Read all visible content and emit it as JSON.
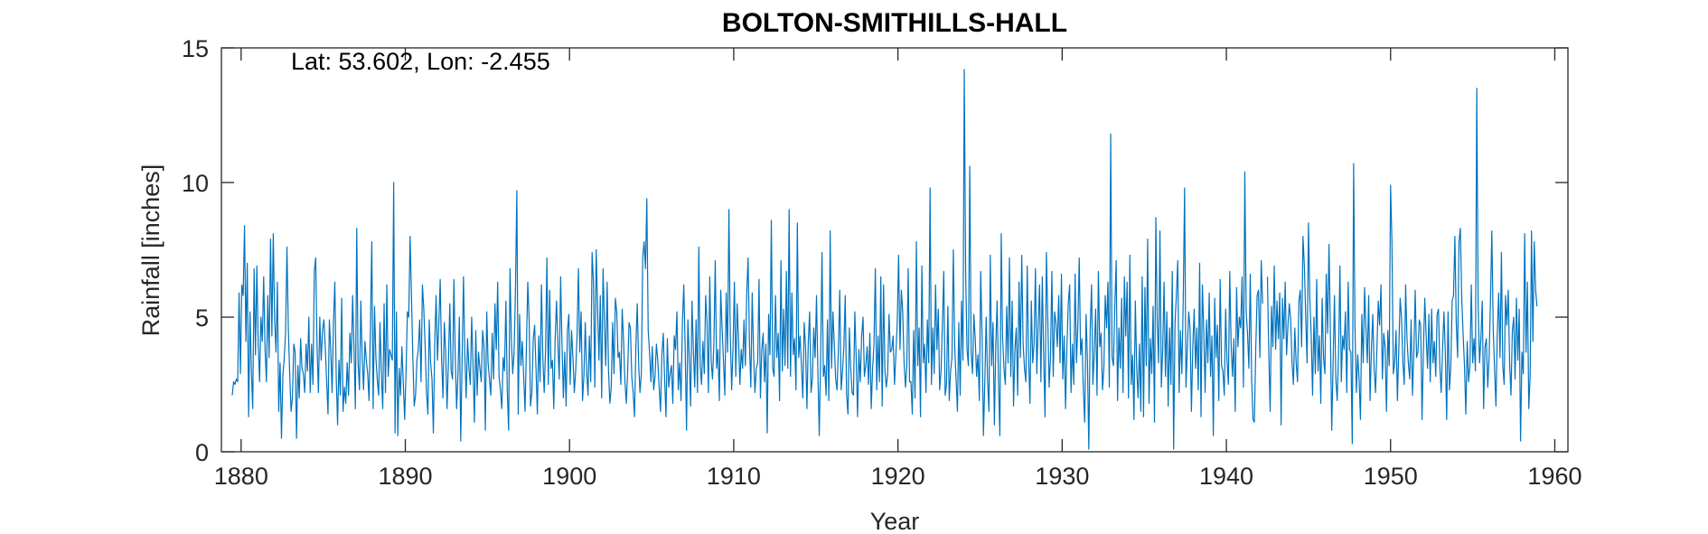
{
  "chart_data": {
    "type": "line",
    "title": "BOLTON-SMITHILLS-HALL",
    "annotation": "Lat: 53.602, Lon: -2.455",
    "xlabel": "Year",
    "ylabel": "Rainfall [inches]",
    "xlim": [
      1878.8,
      1960.8
    ],
    "ylim": [
      0,
      15
    ],
    "xticks": [
      1880,
      1890,
      1900,
      1910,
      1920,
      1930,
      1940,
      1950,
      1960
    ],
    "yticks": [
      0,
      5,
      10,
      15
    ],
    "grid": false,
    "series": [
      {
        "color": "#0072BD",
        "segments": [
          {
            "x_start": 1879.4583,
            "x_step": 0.08333,
            "values": [
              2.1,
              2.6,
              2.5,
              2.7,
              2.6,
              5.9,
              2.9,
              6.2,
              5.8,
              8.4,
              4.1,
              7.0,
              1.3,
              5.2,
              3.0,
              1.6,
              6.8,
              3.6,
              6.9,
              4.0,
              2.6,
              5.0,
              4.1,
              6.5,
              3.8,
              2.6,
              5.8,
              3.5,
              7.9,
              4.3,
              8.1,
              4.9,
              3.7,
              6.3,
              1.5,
              3.3,
              0.5,
              2.8,
              3.5,
              4.4,
              7.6,
              4.6,
              2.9,
              1.5,
              2.0,
              4.0,
              3.7,
              0.5,
              3.2,
              2.0,
              4.2,
              3.1,
              2.9,
              2.2,
              4.0,
              3.0,
              5.0,
              2.2,
              4.0,
              2.5,
              6.7,
              7.2,
              3.9,
              2.2,
              5.0,
              3.4,
              4.5,
              4.9,
              3.9,
              2.6,
              1.4,
              4.9,
              3.8,
              2.2,
              4.8,
              6.3,
              2.8,
              1.0,
              3.4,
              2.1,
              5.7,
              1.5,
              2.4,
              1.8,
              3.3,
              2.1,
              4.4,
              3.3,
              5.8,
              3.9,
              1.6,
              8.3,
              3.3,
              2.3,
              5.6,
              3.5,
              2.3,
              4.1,
              3.4,
              2.9,
              1.9,
              4.6,
              7.8,
              1.6,
              5.4,
              3.5,
              2.7,
              2.1,
              4.8,
              2.9,
              1.6,
              5.5,
              2.2,
              6.2,
              2.8,
              3.8,
              3.6,
              3.4,
              10.0,
              0.7,
              5.2,
              0.6,
              3.1,
              2.1,
              3.9,
              2.6,
              1.2,
              2.9,
              5.2,
              5.0,
              8.0,
              5.8,
              3.5,
              1.7,
              2.1,
              3.4,
              3.8,
              4.9,
              2.6,
              6.2,
              5.3,
              3.9,
              2.2,
              1.4,
              4.9,
              3.3,
              2.7,
              0.7,
              4.0,
              5.8,
              3.4,
              4.8,
              6.4,
              3.5,
              2.0,
              4.8,
              3.7,
              1.6,
              3.3,
              5.5,
              3.0,
              2.7,
              6.4,
              3.5,
              1.6,
              2.9,
              5.0,
              0.4,
              3.4,
              6.5,
              3.6,
              2.0,
              4.2,
              3.1,
              2.5,
              5.0,
              3.2,
              1.1,
              4.5,
              2.1,
              3.7,
              3.1,
              2.6,
              4.5,
              3.9,
              0.8,
              5.2,
              3.3,
              2.7,
              2.1,
              4.4,
              2.7,
              5.5,
              3.8,
              6.3,
              2.8,
              2.3,
              1.6,
              3.5,
              3.0,
              5.6,
              2.3,
              0.8,
              6.8,
              4.2,
              2.9,
              3.7,
              6.0,
              9.7,
              1.4,
              5.1,
              3.2,
              4.1,
              2.8,
              1.5,
              3.9,
              6.3,
              4.9,
              1.7,
              2.2,
              4.2,
              4.7,
              3.1,
              1.4,
              4.3,
              2.6,
              6.2,
              3.5,
              2.2,
              3.8,
              7.2,
              2.5,
              6.0,
              3.1,
              3.4,
              1.6,
              4.2,
              5.6,
              4.0,
              2.7,
              6.5,
              4.0,
              2.0,
              3.7,
              1.7,
              4.5,
              5.1,
              2.5,
              4.5,
              3.5,
              2.2,
              3.0,
              4.3,
              6.8,
              3.7,
              5.2,
              1.9,
              2.8,
              4.8,
              3.0,
              2.1,
              4.3,
              2.6,
              7.4,
              6.3,
              2.4,
              7.5,
              5.4,
              3.4,
              5.8,
              2.0,
              6.8,
              4.9,
              3.2,
              6.3,
              3.0,
              1.8,
              2.4,
              4.8,
              2.9,
              5.7,
              5.2,
              3.5,
              3.7,
              2.5,
              5.3,
              4.1,
              2.6,
              1.8,
              3.0,
              4.8,
              4.6,
              2.8,
              2.2,
              1.3,
              3.9,
              5.5,
              3.3,
              2.2,
              2.9,
              7.2,
              7.8,
              6.8,
              9.4,
              4.5,
              3.7,
              2.6,
              3.9,
              2.3,
              2.8,
              4.0,
              3.4,
              2.4,
              1.5,
              3.6,
              4.4,
              2.7,
              1.3,
              4.2,
              2.4,
              2.9,
              3.2,
              1.8,
              4.3,
              3.8,
              5.2,
              2.3,
              3.3,
              1.9,
              4.8,
              6.2,
              3.9,
              0.8,
              4.9,
              3.5,
              1.7,
              5.6,
              3.8,
              2.4,
              4.9,
              2.2,
              7.6,
              3.2,
              2.5,
              4.1,
              2.9,
              5.8,
              4.8,
              2.2,
              6.5,
              3.4,
              2.7,
              4.0,
              7.1,
              3.1,
              3.8,
              1.9,
              6.0,
              4.6,
              3.4,
              2.1,
              5.9,
              3.7,
              9.0,
              4.3,
              2.3,
              3.9,
              6.3,
              2.8,
              5.5,
              4.2,
              2.5,
              3.8,
              3.1,
              4.9,
              3.2,
              5.9,
              7.2,
              4.0,
              2.4,
              5.9,
              3.6,
              2.2,
              3.1,
              3.3,
              6.4,
              2.0,
              3.8,
              4.4,
              2.6,
              4.0,
              0.7,
              5.1,
              3.6,
              8.6,
              3.1,
              2.8,
              5.8,
              3.5,
              4.4,
              1.9,
              7.1,
              3.0,
              5.3,
              3.2,
              6.7,
              3.1,
              9.0,
              2.8,
              5.9,
              3.6,
              4.2,
              2.3,
              8.5,
              3.5,
              4.3,
              3.2,
              2.0,
              4.8,
              3.9,
              1.6,
              4.1,
              5.2,
              2.2,
              2.7,
              4.6,
              3.5,
              5.8,
              3.0,
              0.6,
              3.4,
              7.4,
              2.8,
              3.2,
              2.1,
              4.9,
              1.9,
              8.2,
              3.1,
              5.2,
              4.0,
              2.7,
              2.3,
              3.8,
              6.0,
              2.3,
              3.0,
              3.9,
              5.8,
              2.1,
              1.4,
              4.6,
              3.1,
              2.2,
              2.1,
              5.2,
              3.5,
              1.3,
              3.8,
              2.6,
              4.3,
              5.0,
              2.8,
              3.2,
              3.9,
              2.5,
              4.4,
              1.6,
              3.1,
              4.0,
              6.8,
              2.3,
              4.3,
              2.6,
              6.5,
              1.7,
              6.2,
              3.0,
              2.4,
              2.9,
              5.1,
              3.7,
              3.8,
              4.3,
              2.5,
              3.6,
              4.8,
              7.3,
              3.8,
              6.0,
              5.2,
              3.3,
              2.4,
              3.2,
              6.8,
              2.6,
              2.6,
              1.4,
              4.5,
              2.0,
              7.8,
              3.2,
              4.6,
              1.3,
              6.9,
              3.3,
              4.0,
              2.2,
              4.9,
              3.3,
              9.8,
              2.5,
              4.6,
              2.9,
              6.2,
              3.8,
              5.3,
              2.3,
              3.0,
              4.7,
              6.7,
              2.1,
              2.5,
              5.4,
              1.9,
              3.0,
              3.5,
              7.5,
              3.9,
              2.7,
              1.5,
              4.8,
              2.1,
              5.6,
              3.4,
              14.2,
              6.6,
              3.8,
              3.2,
              10.6,
              3.7,
              2.9,
              5.1,
              4.2,
              2.8,
              3.6,
              1.9,
              6.7,
              4.3,
              0.6,
              2.6,
              5.0,
              2.7,
              1.5,
              7.3,
              3.2,
              4.8,
              1.0,
              3.9,
              5.6,
              2.6,
              0.6,
              8.1,
              4.2,
              3.1,
              2.5,
              5.4,
              3.3,
              7.2,
              2.8,
              5.6,
              1.7,
              3.8,
              4.6,
              2.1,
              6.3,
              3.5,
              7.3,
              4.0,
              3.1,
              2.6,
              6.9,
              3.5,
              1.8,
              5.6,
              3.3,
              4.0,
              6.8,
              2.9,
              4.7,
              6.2,
              2.6,
              6.5,
              3.6,
              1.3,
              7.4,
              5.0,
              2.4,
              3.5,
              6.7,
              2.8,
              5.2,
              4.8,
              3.9,
              5.8,
              3.3,
              6.6,
              2.7,
              4.3,
              1.6,
              3.9,
              5.5,
              6.2,
              2.2,
              4.0,
              2.5,
              6.6,
              3.3,
              4.7,
              7.2,
              3.6,
              4.2,
              2.3,
              1.1,
              5.1,
              3.4,
              0.1,
              4.5,
              6.2,
              2.5,
              3.7,
              5.3,
              2.1,
              6.7,
              3.9,
              4.4,
              2.3,
              3.1,
              5.8,
              4.6,
              6.3,
              2.4,
              11.8,
              3.5,
              3.2,
              5.4,
              7.1,
              1.9,
              4.6,
              3.1,
              5.7,
              2.2,
              6.5,
              4.3,
              6.3,
              2.0,
              7.3,
              2.5,
              3.6,
              1.2,
              5.6,
              3.1,
              2.0,
              4.0,
              1.5,
              6.5,
              1.3,
              6.1,
              3.2,
              7.9,
              1.8,
              4.2,
              2.9,
              5.4,
              1.1,
              8.7,
              4.8,
              3.3,
              8.2,
              2.4,
              3.8,
              6.3,
              2.8,
              5.2,
              1.7,
              4.6,
              2.5,
              6.7,
              0.1,
              4.8,
              5.8,
              7.1,
              2.2,
              4.5,
              2.9,
              5.6,
              9.8,
              2.4,
              3.8,
              5.2,
              4.6,
              1.5,
              3.9,
              5.3,
              3.1,
              4.6,
              2.3,
              7.0,
              1.3,
              6.2,
              4.5,
              2.2,
              4.9,
              3.3,
              5.9,
              2.8,
              4.3,
              0.6,
              5.7,
              3.5,
              4.7,
              1.9,
              6.4,
              3.2,
              3.0,
              2.1,
              5.3,
              3.4,
              2.5,
              6.7,
              4.0,
              2.8,
              4.2,
              1.5,
              6.1,
              3.9,
              5.0,
              4.6,
              6.5,
              2.4,
              10.4,
              5.2,
              4.4,
              3.1,
              6.6,
              2.7,
              1.2,
              1.1,
              3.8,
              5.8,
              6.0,
              3.5,
              7.1,
              5.5
            ]
          },
          {
            "x_start": 1942.5,
            "x_step": 0.08333,
            "values": [
              6.5,
              3.7,
              1.5,
              5.4,
              3.9,
              6.9,
              3.8,
              5.6,
              4.2,
              5.9,
              1.0,
              5.7,
              4.2,
              6.3,
              3.6,
              4.7,
              5.5,
              4.9,
              3.3,
              2.5,
              4.6,
              3.3,
              2.6,
              5.6,
              6.0,
              3.9,
              8.0,
              6.9,
              5.0,
              3.3,
              8.5,
              5.7,
              4.3,
              2.1,
              5.0,
              2.9,
              6.4,
              3.0,
              4.3,
              1.8,
              5.7,
              3.5,
              2.9,
              6.6,
              4.4,
              7.7,
              4.5,
              0.8,
              3.3,
              5.8,
              2.7,
              1.9,
              3.7,
              6.9,
              2.6,
              4.3,
              3.8,
              5.2,
              2.2,
              6.3,
              3.8,
              3.7,
              0.3,
              10.7,
              4.6,
              2.2,
              3.6,
              2.7,
              1.2,
              5.1,
              3.3,
              6.1,
              4.6,
              3.3,
              5.8,
              1.9,
              3.8,
              5.1,
              3.1,
              2.2,
              3.8,
              5.6,
              4.7,
              6.2,
              2.7,
              4.4,
              3.9,
              1.5,
              4.5,
              3.2,
              9.9,
              7.8,
              2.9,
              3.3,
              4.5,
              1.9,
              3.8,
              5.7,
              5.0,
              3.3,
              2.5,
              6.2,
              4.2,
              3.3,
              2.7,
              4.9,
              2.1,
              3.7,
              6.0,
              3.5,
              3.7,
              4.9,
              4.7,
              1.2,
              3.8,
              5.7,
              4.3,
              3.1,
              5.1,
              2.6,
              5.3,
              3.3,
              4.1,
              2.8,
              5.1,
              5.3,
              3.2,
              2.2,
              3.8,
              5.2,
              3.7,
              1.2,
              5.2,
              2.3,
              3.1,
              5.6,
              5.8,
              8.0,
              4.8,
              3.5,
              7.8,
              8.3,
              5.7,
              4.4,
              3.2,
              1.4,
              4.1,
              2.6,
              3.2,
              6.2,
              3.3,
              4.2,
              3.0,
              13.5,
              5.5,
              3.3,
              4.2,
              5.6,
              1.6,
              3.9,
              4.2,
              2.4,
              3.5,
              5.6,
              8.2,
              4.6,
              3.1,
              1.7,
              4.4,
              5.9,
              3.5,
              7.4,
              3.2,
              2.5,
              5.8,
              4.7,
              6.0,
              3.3,
              2.1,
              4.5,
              5.0,
              2.7,
              5.7,
              3.4,
              5.3,
              0.4,
              3.7,
              2.9,
              8.1,
              3.7,
              6.3,
              1.6,
              2.8,
              8.2,
              4.1,
              7.8,
              6.0,
              5.4
            ]
          }
        ]
      }
    ]
  }
}
